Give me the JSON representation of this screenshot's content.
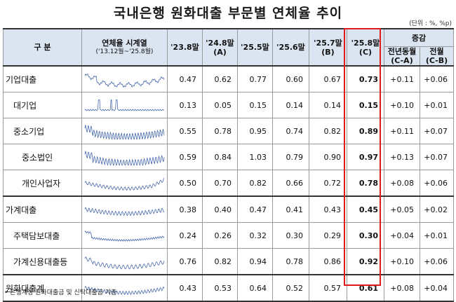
{
  "title": "국내은행 원화대출 부문별 연체율 추이",
  "unit_note": "(단위 : %, %p)",
  "header": {
    "category": "구  분",
    "series_label": "연체율 시계열",
    "series_range": "('13.12월~'25.8월)",
    "col_238": "'23.8말",
    "col_248": "'24.8말",
    "col_248_sub": "(A)",
    "col_255": "'25.5말",
    "col_256": "'25.6말",
    "col_257": "'25.7말",
    "col_257_sub": "(B)",
    "col_258": "'25.8말",
    "col_258_sub": "(C)",
    "change": "증감",
    "change_yoy": "전년동월",
    "change_yoy_sub": "(C-A)",
    "change_mom": "전월",
    "change_mom_sub": "(C-B)"
  },
  "rows": [
    {
      "label": "기업대출",
      "level": 0,
      "values": [
        "0.47",
        "0.62",
        "0.77",
        "0.60",
        "0.67",
        "0.73"
      ],
      "yoy": "+0.11",
      "mom": "+0.06"
    },
    {
      "label": "대기업",
      "level": 1,
      "values": [
        "0.13",
        "0.05",
        "0.15",
        "0.14",
        "0.14",
        "0.15"
      ],
      "yoy": "+0.10",
      "mom": "+0.01"
    },
    {
      "label": "중소기업",
      "level": 1,
      "values": [
        "0.55",
        "0.78",
        "0.95",
        "0.74",
        "0.82",
        "0.89"
      ],
      "yoy": "+0.11",
      "mom": "+0.07"
    },
    {
      "label": "중소법인",
      "level": 2,
      "values": [
        "0.59",
        "0.84",
        "1.03",
        "0.79",
        "0.90",
        "0.97"
      ],
      "yoy": "+0.13",
      "mom": "+0.07"
    },
    {
      "label": "개인사업자",
      "level": 2,
      "values": [
        "0.50",
        "0.70",
        "0.82",
        "0.66",
        "0.72",
        "0.78"
      ],
      "yoy": "+0.08",
      "mom": "+0.06"
    },
    {
      "label": "가계대출",
      "level": 0,
      "values": [
        "0.38",
        "0.40",
        "0.47",
        "0.41",
        "0.43",
        "0.45"
      ],
      "yoy": "+0.05",
      "mom": "+0.02"
    },
    {
      "label": "주택담보대출",
      "level": 1,
      "values": [
        "0.24",
        "0.26",
        "0.32",
        "0.30",
        "0.29",
        "0.30"
      ],
      "yoy": "+0.04",
      "mom": "+0.01"
    },
    {
      "label": "가계신용대출등",
      "level": 1,
      "values": [
        "0.76",
        "0.82",
        "0.94",
        "0.78",
        "0.86",
        "0.92"
      ],
      "yoy": "+0.10",
      "mom": "+0.06"
    },
    {
      "label": "원화대출계",
      "level": 0,
      "values": [
        "0.43",
        "0.53",
        "0.64",
        "0.52",
        "0.57",
        "0.61"
      ],
      "yoy": "+0.08",
      "mom": "+0.04"
    }
  ],
  "colors": {
    "header_bg": "#dbe4f1",
    "spark_line": "#2f55a4",
    "highlight_box": "#e11b1b"
  },
  "footnote": "• 은행계정 원화대출금 및 신탁대출금 기준"
}
